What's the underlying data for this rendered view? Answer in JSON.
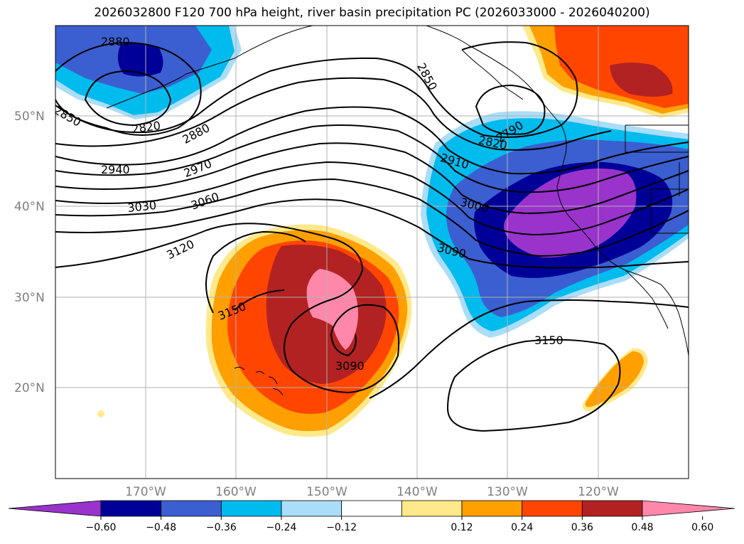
{
  "title": "2026032800 F120 700 hPa height, river basin precipitation PC (2026033000 - 2026040200)",
  "latitude_labels": [
    "50°N",
    "40°N",
    "30°N",
    "20°N"
  ],
  "longitude_labels": [
    "170°W",
    "160°W",
    "150°W",
    "140°W",
    "130°W",
    "120°W"
  ],
  "contour_labels": [
    "2880",
    "2850",
    "2820",
    "2880",
    "2940",
    "2970",
    "3030",
    "3060",
    "3120",
    "3150",
    "3090",
    "2850",
    "2790",
    "2820",
    "2910",
    "3000",
    "3090",
    "3150"
  ],
  "colorbar": {
    "ticks": [
      "−0.60",
      "−0.48",
      "−0.36",
      "−0.24",
      "−0.12",
      "0.12",
      "0.24",
      "0.36",
      "0.48",
      "0.60"
    ],
    "colors": [
      "#9933cc",
      "#000099",
      "#3b5fd0",
      "#00bbee",
      "#aaddf8",
      "#ffffff",
      "#ffe98a",
      "#ffa000",
      "#ff4500",
      "#b22222",
      "#ff88aa"
    ]
  },
  "colors": {
    "purple": "#9933cc",
    "navy": "#000099",
    "blue": "#3b5fd0",
    "cyan": "#00bbee",
    "lightblue": "#aaddf8",
    "yellow": "#ffe98a",
    "orange": "#ffa000",
    "redorange": "#ff4500",
    "darkred": "#b22222",
    "pink": "#ff88aa"
  }
}
